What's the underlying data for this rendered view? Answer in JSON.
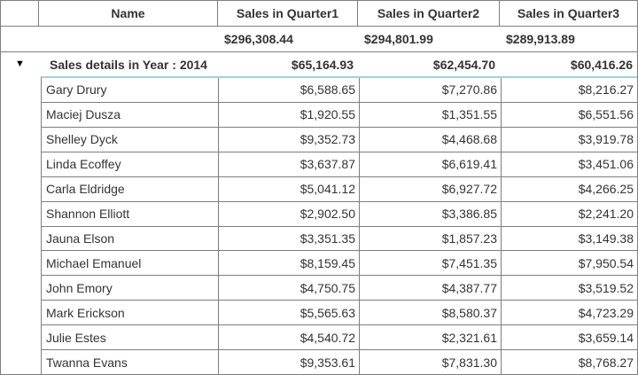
{
  "grid": {
    "columns": [
      "",
      "Name",
      "Sales in Quarter1",
      "Sales in Quarter2",
      "Sales in Quarter3"
    ],
    "summary": {
      "q1": "$296,308.44",
      "q2": "$294,801.99",
      "q3": "$289,913.89"
    },
    "group": {
      "expander_icon": "▼",
      "label": "Sales details in Year : 2014",
      "q1": "$65,164.93",
      "q2": "$62,454.70",
      "q3": "$60,416.26"
    },
    "rows": [
      {
        "name": "Gary Drury",
        "q1": "$6,588.65",
        "q2": "$7,270.86",
        "q3": "$8,216.27"
      },
      {
        "name": "Maciej Dusza",
        "q1": "$1,920.55",
        "q2": "$1,351.55",
        "q3": "$6,551.56"
      },
      {
        "name": "Shelley Dyck",
        "q1": "$9,352.73",
        "q2": "$4,468.68",
        "q3": "$3,919.78"
      },
      {
        "name": "Linda Ecoffey",
        "q1": "$3,637.87",
        "q2": "$6,619.41",
        "q3": "$3,451.06"
      },
      {
        "name": "Carla Eldridge",
        "q1": "$5,041.12",
        "q2": "$6,927.72",
        "q3": "$4,266.25"
      },
      {
        "name": "Shannon Elliott",
        "q1": "$2,902.50",
        "q2": "$3,386.85",
        "q3": "$2,241.20"
      },
      {
        "name": "Jauna Elson",
        "q1": "$3,351.35",
        "q2": "$1,857.23",
        "q3": "$3,149.38"
      },
      {
        "name": "Michael Emanuel",
        "q1": "$8,159.45",
        "q2": "$7,451.35",
        "q3": "$7,950.54"
      },
      {
        "name": "John Emory",
        "q1": "$4,750.75",
        "q2": "$4,387.77",
        "q3": "$3,519.52"
      },
      {
        "name": "Mark Erickson",
        "q1": "$5,565.63",
        "q2": "$8,580.37",
        "q3": "$4,723.29"
      },
      {
        "name": "Julie Estes",
        "q1": "$4,540.72",
        "q2": "$2,321.61",
        "q3": "$3,659.14"
      },
      {
        "name": "Twanna Evans",
        "q1": "$9,353.61",
        "q2": "$7,831.30",
        "q3": "$8,768.27"
      }
    ],
    "colors": {
      "detail_top_border": "#9cd5dd",
      "grid_border": "#7e7e7e",
      "text": "#333333"
    }
  }
}
